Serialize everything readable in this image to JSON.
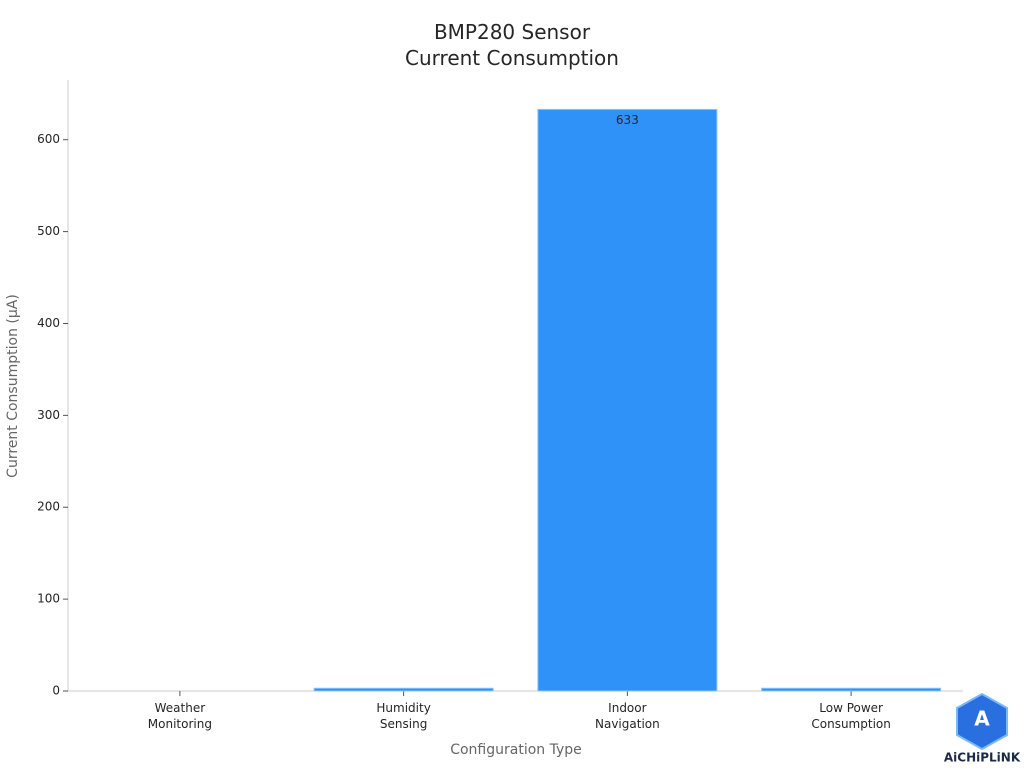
{
  "chart_data": {
    "type": "bar",
    "title": "BMP280 Sensor\nCurrent Consumption",
    "x_label": "Configuration Type",
    "y_label": "Current Consumption (µA)",
    "categories": [
      "Weather\nMonitoring",
      "Humidity\nSensing",
      "Indoor\nNavigation",
      "Low Power\nConsumption"
    ],
    "values": [
      0,
      3,
      633,
      3
    ],
    "value_labels": [
      null,
      null,
      "633",
      null
    ],
    "color": "#2f92f8",
    "ylim": [
      0,
      665
    ],
    "yticks": [
      0,
      100,
      200,
      300,
      400,
      500,
      600
    ],
    "grid": false
  },
  "logo_text": "AiCHiPLiNK"
}
